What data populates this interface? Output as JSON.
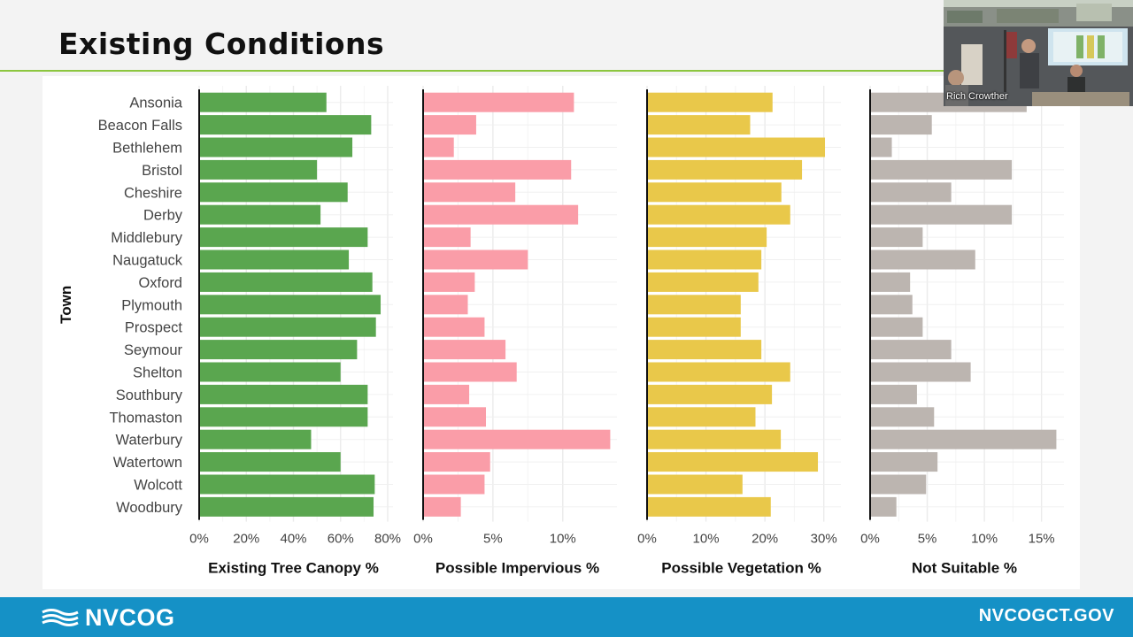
{
  "slide": {
    "title": "Existing Conditions",
    "footer_logo": "NVCOG",
    "footer_site": "NVCOGCT.GOV"
  },
  "video": {
    "participant_name": "Rich Crowther"
  },
  "colors": {
    "green": "#5aa64f",
    "pink": "#fa9da8",
    "yellow": "#e9c84a",
    "gray": "#bcb5b0",
    "accent_rule": "#8cc63f",
    "footer": "#1591c6"
  },
  "chart_data": {
    "type": "bar",
    "orientation": "horizontal",
    "y_axis_label": "Town",
    "categories": [
      "Ansonia",
      "Beacon Falls",
      "Bethlehem",
      "Bristol",
      "Cheshire",
      "Derby",
      "Middlebury",
      "Naugatuck",
      "Oxford",
      "Plymouth",
      "Prospect",
      "Seymour",
      "Shelton",
      "Southbury",
      "Thomaston",
      "Waterbury",
      "Watertown",
      "Wolcott",
      "Woodbury"
    ],
    "panels": [
      {
        "name": "Existing Tree Canopy %",
        "color": "#5aa64f",
        "xlim": [
          0,
          80
        ],
        "ticks": [
          0,
          20,
          40,
          60,
          80
        ],
        "tick_labels": [
          "0%",
          "20%",
          "40%",
          "60%",
          "80%"
        ],
        "values": [
          54,
          73,
          65,
          50,
          63,
          51.5,
          71.5,
          63.5,
          73.5,
          77,
          75,
          67,
          60,
          71.5,
          71.5,
          47.5,
          60,
          74.5,
          74
        ]
      },
      {
        "name": "Possible Impervious %",
        "color": "#fa9da8",
        "xlim": [
          0,
          13.5
        ],
        "ticks": [
          0,
          5,
          10
        ],
        "tick_labels": [
          "0%",
          "5%",
          "10%"
        ],
        "values": [
          10.8,
          3.8,
          2.2,
          10.6,
          6.6,
          11.1,
          3.4,
          7.5,
          3.7,
          3.2,
          4.4,
          5.9,
          6.7,
          3.3,
          4.5,
          13.4,
          4.8,
          4.4,
          2.7
        ]
      },
      {
        "name": "Possible Vegetation %",
        "color": "#e9c84a",
        "xlim": [
          0,
          32
        ],
        "ticks": [
          0,
          10,
          20,
          30
        ],
        "tick_labels": [
          "0%",
          "10%",
          "20%",
          "30%"
        ],
        "values": [
          21.3,
          17.5,
          30.2,
          26.3,
          22.8,
          24.3,
          20.3,
          19.4,
          18.9,
          15.9,
          15.9,
          19.4,
          24.3,
          21.2,
          18.4,
          22.7,
          29,
          16.2,
          21
        ]
      },
      {
        "name": "Not Suitable %",
        "color": "#bcb5b0",
        "xlim": [
          0,
          16.5
        ],
        "ticks": [
          0,
          5,
          10,
          15
        ],
        "tick_labels": [
          "0%",
          "5%",
          "10%",
          "15%"
        ],
        "values": [
          13.7,
          5.4,
          1.9,
          12.4,
          7.1,
          12.4,
          4.6,
          9.2,
          3.5,
          3.7,
          4.6,
          7.1,
          8.8,
          4.1,
          5.6,
          16.3,
          5.9,
          4.9,
          2.3
        ]
      }
    ]
  }
}
